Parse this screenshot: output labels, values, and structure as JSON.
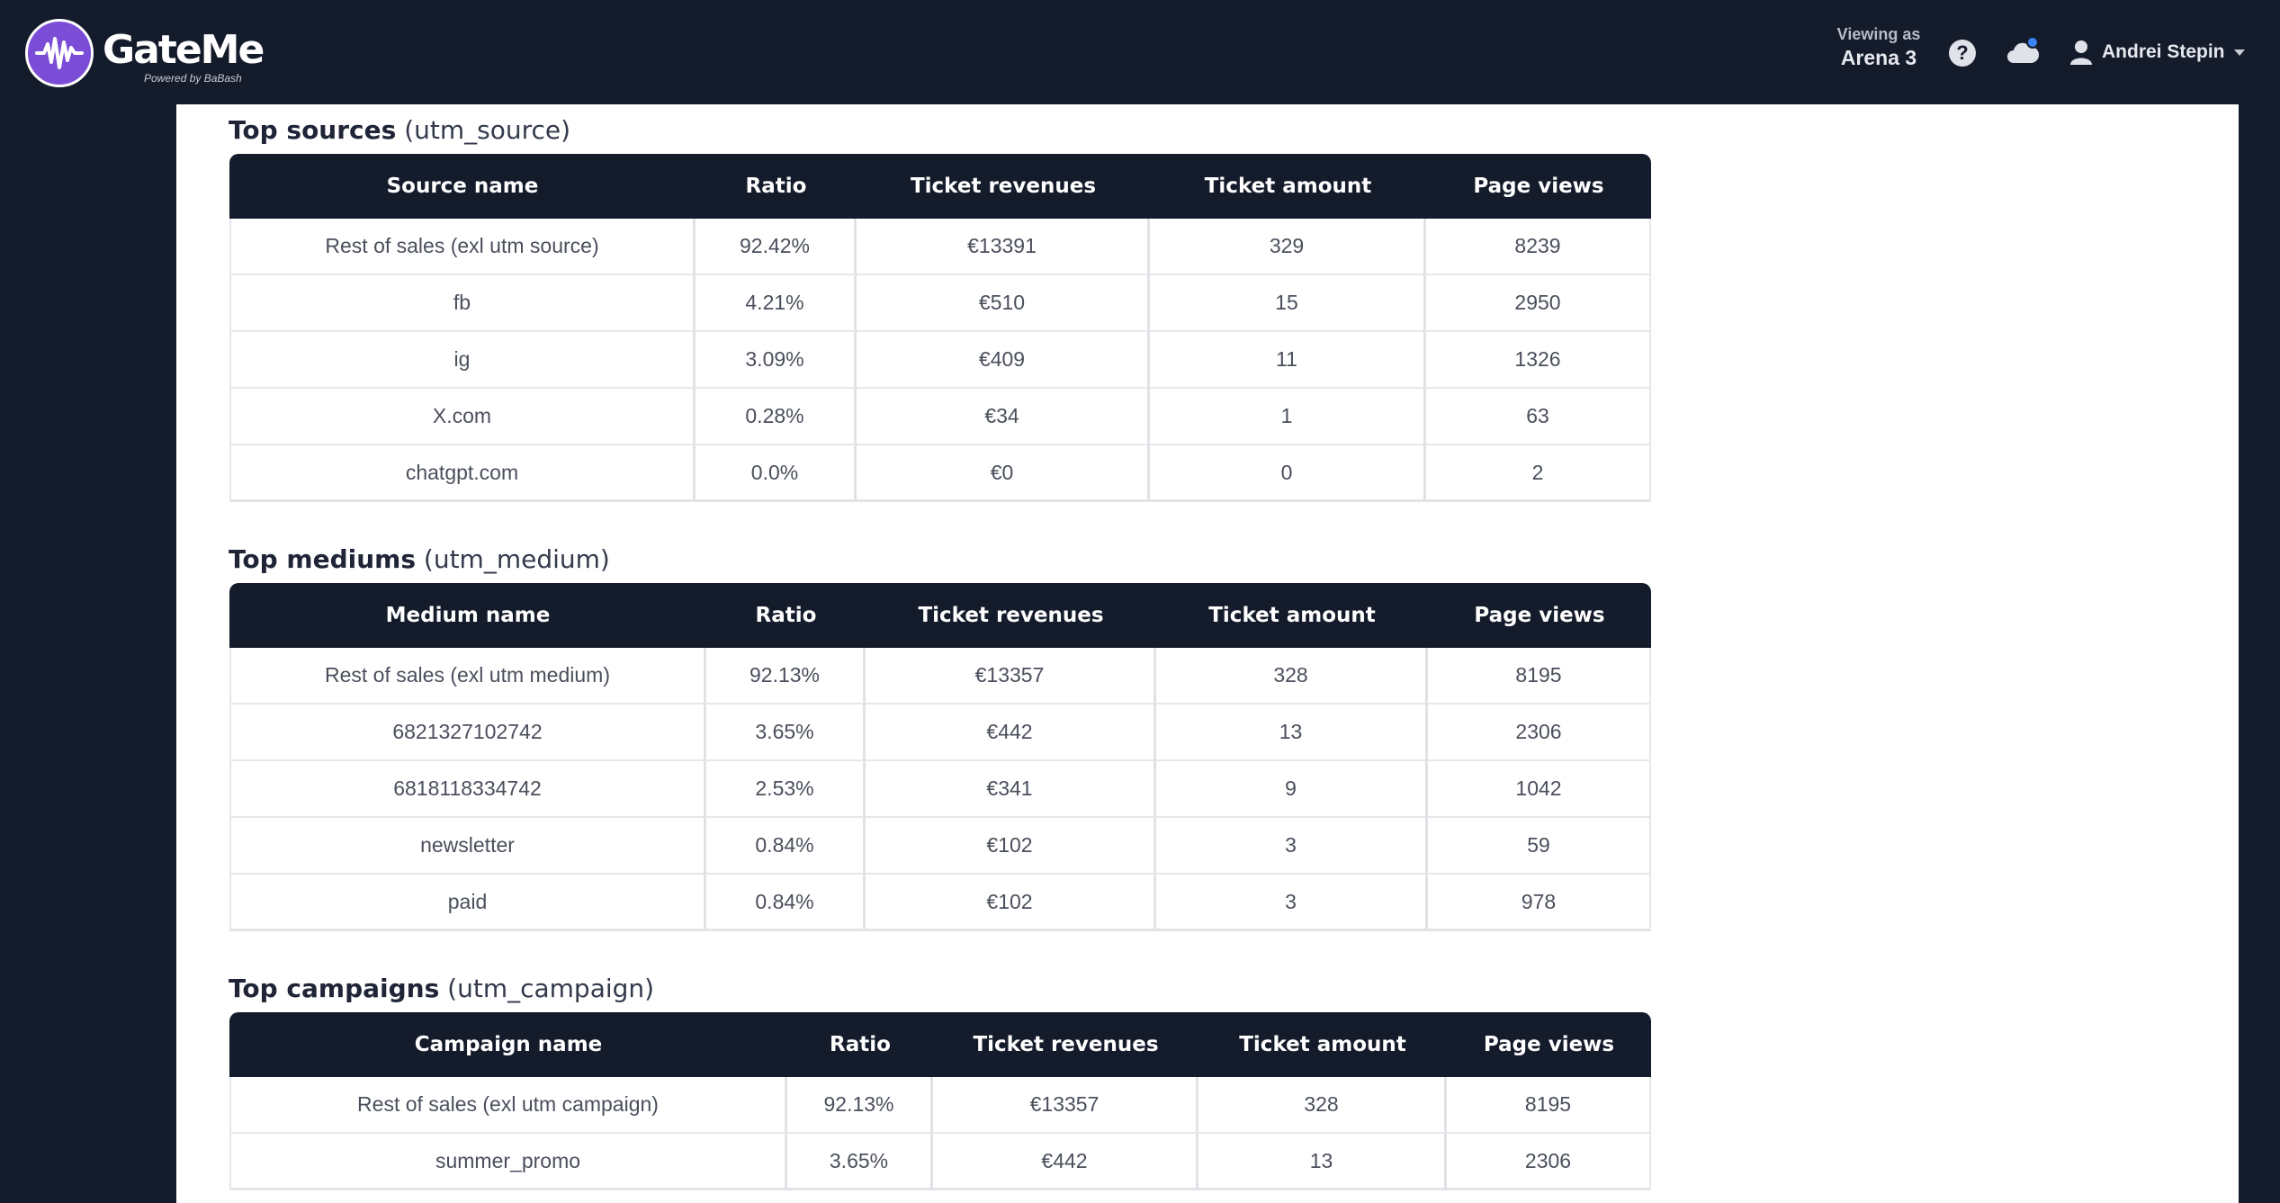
{
  "header": {
    "brand": "GateMe",
    "powered_by": "Powered by BaBash",
    "viewing_label": "Viewing as",
    "viewing_value": "Arena 3",
    "help_glyph": "?",
    "user_name": "Andrei Stepin"
  },
  "sources": {
    "title_bold": "Top sources",
    "title_tech": "(utm_source)",
    "columns": [
      "Source name",
      "Ratio",
      "Ticket revenues",
      "Ticket amount",
      "Page views"
    ],
    "rows": [
      [
        "Rest of sales (exl utm source)",
        "92.42%",
        "€13391",
        "329",
        "8239"
      ],
      [
        "fb",
        "4.21%",
        "€510",
        "15",
        "2950"
      ],
      [
        "ig",
        "3.09%",
        "€409",
        "11",
        "1326"
      ],
      [
        "X.com",
        "0.28%",
        "€34",
        "1",
        "63"
      ],
      [
        "chatgpt.com",
        "0.0%",
        "€0",
        "0",
        "2"
      ]
    ]
  },
  "mediums": {
    "title_bold": "Top mediums",
    "title_tech": "(utm_medium)",
    "columns": [
      "Medium name",
      "Ratio",
      "Ticket revenues",
      "Ticket amount",
      "Page views"
    ],
    "rows": [
      [
        "Rest of sales (exl utm medium)",
        "92.13%",
        "€13357",
        "328",
        "8195"
      ],
      [
        "6821327102742",
        "3.65%",
        "€442",
        "13",
        "2306"
      ],
      [
        "6818118334742",
        "2.53%",
        "€341",
        "9",
        "1042"
      ],
      [
        "newsletter",
        "0.84%",
        "€102",
        "3",
        "59"
      ],
      [
        "paid",
        "0.84%",
        "€102",
        "3",
        "978"
      ]
    ]
  },
  "campaigns": {
    "title_bold": "Top campaigns",
    "title_tech": "(utm_campaign)",
    "columns": [
      "Campaign name",
      "Ratio",
      "Ticket revenues",
      "Ticket amount",
      "Page views"
    ],
    "rows": [
      [
        "Rest of sales (exl utm campaign)",
        "92.13%",
        "€13357",
        "328",
        "8195"
      ],
      [
        "summer_promo",
        "3.65%",
        "€442",
        "13",
        "2306"
      ]
    ]
  }
}
